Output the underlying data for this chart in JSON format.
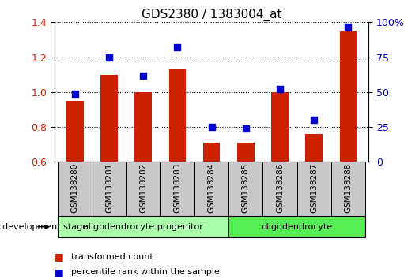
{
  "title": "GDS2380 / 1383004_at",
  "samples": [
    "GSM138280",
    "GSM138281",
    "GSM138282",
    "GSM138283",
    "GSM138284",
    "GSM138285",
    "GSM138286",
    "GSM138287",
    "GSM138288"
  ],
  "transformed_count": [
    0.95,
    1.1,
    1.0,
    1.13,
    0.71,
    0.71,
    1.0,
    0.76,
    1.35
  ],
  "percentile_rank": [
    49,
    75,
    62,
    82,
    25,
    24,
    52,
    30,
    97
  ],
  "ylim_left": [
    0.6,
    1.4
  ],
  "ylim_right": [
    0,
    100
  ],
  "yticks_left": [
    0.6,
    0.8,
    1.0,
    1.2,
    1.4
  ],
  "yticks_right": [
    0,
    25,
    50,
    75,
    100
  ],
  "ytick_labels_right": [
    "0",
    "25",
    "50",
    "75",
    "100%"
  ],
  "bar_color": "#cc2200",
  "scatter_color": "#0000cc",
  "groups": [
    {
      "label": "oligodendrocyte progenitor",
      "start": 0,
      "end": 4,
      "color": "#aaffaa"
    },
    {
      "label": "oligodendrocyte",
      "start": 5,
      "end": 8,
      "color": "#55ee55"
    }
  ],
  "development_stage_label": "development stage",
  "legend_items": [
    {
      "label": "transformed count",
      "color": "#cc2200"
    },
    {
      "label": "percentile rank within the sample",
      "color": "#0000cc"
    }
  ],
  "grid_color": "black",
  "axis_box_color": "#c8c8c8",
  "title_fontsize": 11,
  "bar_width": 0.5
}
